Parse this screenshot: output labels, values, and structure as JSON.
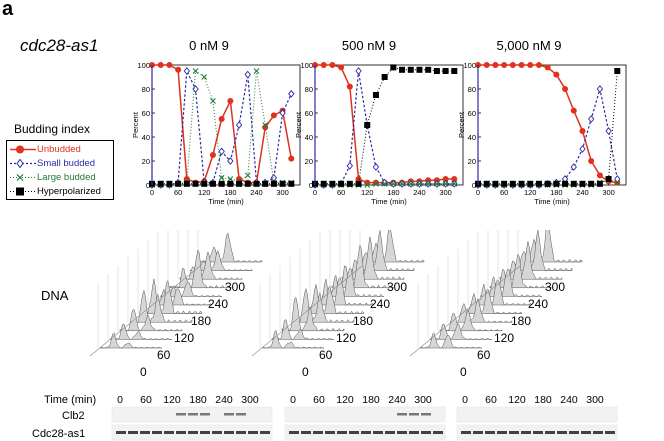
{
  "figure": {
    "panel_letter": "a",
    "strain": "cdc28-as1",
    "legend": {
      "title": "Budding index",
      "items": [
        {
          "label": "Unbudded",
          "color": "#e0301e",
          "marker": "filled-circle"
        },
        {
          "label": "Small budded",
          "color": "#2b2ba0",
          "marker": "open-diamond"
        },
        {
          "label": "Large budded",
          "color": "#1e7a3a",
          "marker": "x"
        },
        {
          "label": "Hyperpolarized",
          "color": "#000000",
          "marker": "filled-square"
        }
      ]
    },
    "dna": {
      "label": "DNA",
      "time_labels": [
        "0",
        "60",
        "120",
        "180",
        "240",
        "300"
      ]
    },
    "blots": {
      "time_header": "Time (min)",
      "time_labels": [
        "0",
        "60",
        "120",
        "180",
        "240",
        "300"
      ],
      "rows": [
        "Clb2",
        "Cdc28-as1"
      ]
    }
  },
  "chart_data": [
    {
      "type": "line",
      "title": "0 nM 9",
      "xlabel": "Time (min)",
      "ylabel": "Percent",
      "xlim": [
        0,
        340
      ],
      "ylim": [
        0,
        100
      ],
      "xticks": [
        0,
        60,
        120,
        180,
        240,
        300
      ],
      "yticks": [
        0,
        20,
        40,
        60,
        80,
        100
      ],
      "series": [
        {
          "name": "Unbudded",
          "color": "#e0301e",
          "x": [
            0,
            20,
            40,
            60,
            80,
            100,
            120,
            140,
            160,
            180,
            200,
            220,
            240,
            260,
            280,
            300,
            320
          ],
          "y": [
            100,
            100,
            100,
            96,
            5,
            2,
            3,
            25,
            55,
            70,
            5,
            2,
            2,
            48,
            58,
            62,
            22
          ]
        },
        {
          "name": "Small budded",
          "color": "#2b2ba0",
          "x": [
            0,
            20,
            40,
            60,
            80,
            100,
            120,
            140,
            160,
            180,
            200,
            220,
            240,
            260,
            280,
            300,
            320
          ],
          "y": [
            0,
            0,
            0,
            2,
            95,
            80,
            2,
            2,
            28,
            20,
            50,
            92,
            2,
            2,
            6,
            60,
            76
          ]
        },
        {
          "name": "Large budded",
          "color": "#1e7a3a",
          "x": [
            0,
            20,
            40,
            60,
            80,
            100,
            120,
            140,
            160,
            180,
            200,
            220,
            240,
            260,
            280,
            300,
            320
          ],
          "y": [
            0,
            0,
            0,
            1,
            2,
            95,
            90,
            70,
            6,
            5,
            3,
            8,
            95,
            50,
            2,
            2,
            2
          ]
        },
        {
          "name": "Hyperpolarized",
          "color": "#000000",
          "x": [
            0,
            20,
            40,
            60,
            80,
            100,
            120,
            140,
            160,
            180,
            200,
            220,
            240,
            260,
            280,
            300,
            320
          ],
          "y": [
            1,
            1,
            1,
            1,
            1,
            1,
            1,
            1,
            1,
            1,
            1,
            1,
            1,
            1,
            1,
            1,
            1
          ]
        }
      ]
    },
    {
      "type": "line",
      "title": "500 nM 9",
      "xlabel": "Time (min)",
      "ylabel": "Percent",
      "xlim": [
        0,
        340
      ],
      "ylim": [
        0,
        100
      ],
      "xticks": [
        0,
        60,
        120,
        180,
        240,
        300
      ],
      "yticks": [
        0,
        20,
        40,
        60,
        80,
        100
      ],
      "series": [
        {
          "name": "Unbudded",
          "color": "#e0301e",
          "x": [
            0,
            20,
            40,
            60,
            80,
            100,
            120,
            140,
            160,
            180,
            200,
            220,
            240,
            260,
            280,
            300,
            320
          ],
          "y": [
            100,
            100,
            100,
            98,
            82,
            5,
            2,
            2,
            2,
            2,
            2,
            3,
            3,
            4,
            4,
            5,
            5
          ]
        },
        {
          "name": "Small budded",
          "color": "#2b2ba0",
          "x": [
            0,
            20,
            40,
            60,
            80,
            100,
            120,
            140,
            160,
            180,
            200,
            220,
            240,
            260,
            280,
            300,
            320
          ],
          "y": [
            0,
            0,
            0,
            1,
            16,
            95,
            50,
            15,
            2,
            1,
            1,
            1,
            1,
            1,
            1,
            1,
            1
          ]
        },
        {
          "name": "Large budded",
          "color": "#1e7a3a",
          "x": [
            0,
            20,
            40,
            60,
            80,
            100,
            120,
            140,
            160,
            180,
            200,
            220,
            240,
            260,
            280,
            300,
            320
          ],
          "y": [
            0,
            0,
            0,
            0,
            0,
            0,
            0,
            1,
            1,
            1,
            1,
            1,
            1,
            1,
            1,
            1,
            1
          ]
        },
        {
          "name": "Hyperpolarized",
          "color": "#000000",
          "x": [
            0,
            20,
            40,
            60,
            80,
            100,
            120,
            140,
            160,
            180,
            200,
            220,
            240,
            260,
            280,
            300,
            320
          ],
          "y": [
            1,
            1,
            1,
            1,
            1,
            1,
            50,
            75,
            90,
            98,
            96,
            96,
            96,
            96,
            95,
            95,
            95
          ]
        }
      ]
    },
    {
      "type": "line",
      "title": "5,000 nM 9",
      "xlabel": "Time (min)",
      "ylabel": "Percent",
      "xlim": [
        0,
        340
      ],
      "ylim": [
        0,
        100
      ],
      "xticks": [
        0,
        60,
        120,
        180,
        240,
        300
      ],
      "yticks": [
        0,
        20,
        40,
        60,
        80,
        100
      ],
      "series": [
        {
          "name": "Unbudded",
          "color": "#e0301e",
          "x": [
            0,
            20,
            40,
            60,
            80,
            100,
            120,
            140,
            160,
            180,
            200,
            220,
            240,
            260,
            280,
            300,
            320
          ],
          "y": [
            100,
            100,
            100,
            100,
            100,
            100,
            100,
            100,
            98,
            92,
            80,
            62,
            45,
            20,
            8,
            3,
            2
          ]
        },
        {
          "name": "Small budded",
          "color": "#2b2ba0",
          "x": [
            0,
            20,
            40,
            60,
            80,
            100,
            120,
            140,
            160,
            180,
            200,
            220,
            240,
            260,
            280,
            300,
            320
          ],
          "y": [
            0,
            0,
            0,
            0,
            0,
            0,
            0,
            0,
            1,
            2,
            5,
            15,
            30,
            55,
            80,
            45,
            5
          ]
        },
        {
          "name": "Large budded",
          "color": "#1e7a3a",
          "x": [
            0,
            20,
            40,
            60,
            80,
            100,
            120,
            140,
            160,
            180,
            200,
            220,
            240,
            260,
            280,
            300,
            320
          ],
          "y": [
            0,
            0,
            0,
            0,
            0,
            0,
            0,
            0,
            0,
            0,
            0,
            0,
            0,
            0,
            2,
            5,
            2
          ]
        },
        {
          "name": "Hyperpolarized",
          "color": "#000000",
          "x": [
            0,
            20,
            40,
            60,
            80,
            100,
            120,
            140,
            160,
            180,
            200,
            220,
            240,
            260,
            280,
            300,
            320
          ],
          "y": [
            1,
            1,
            1,
            1,
            1,
            1,
            1,
            1,
            1,
            1,
            1,
            1,
            1,
            1,
            1,
            5,
            95
          ]
        }
      ]
    }
  ]
}
